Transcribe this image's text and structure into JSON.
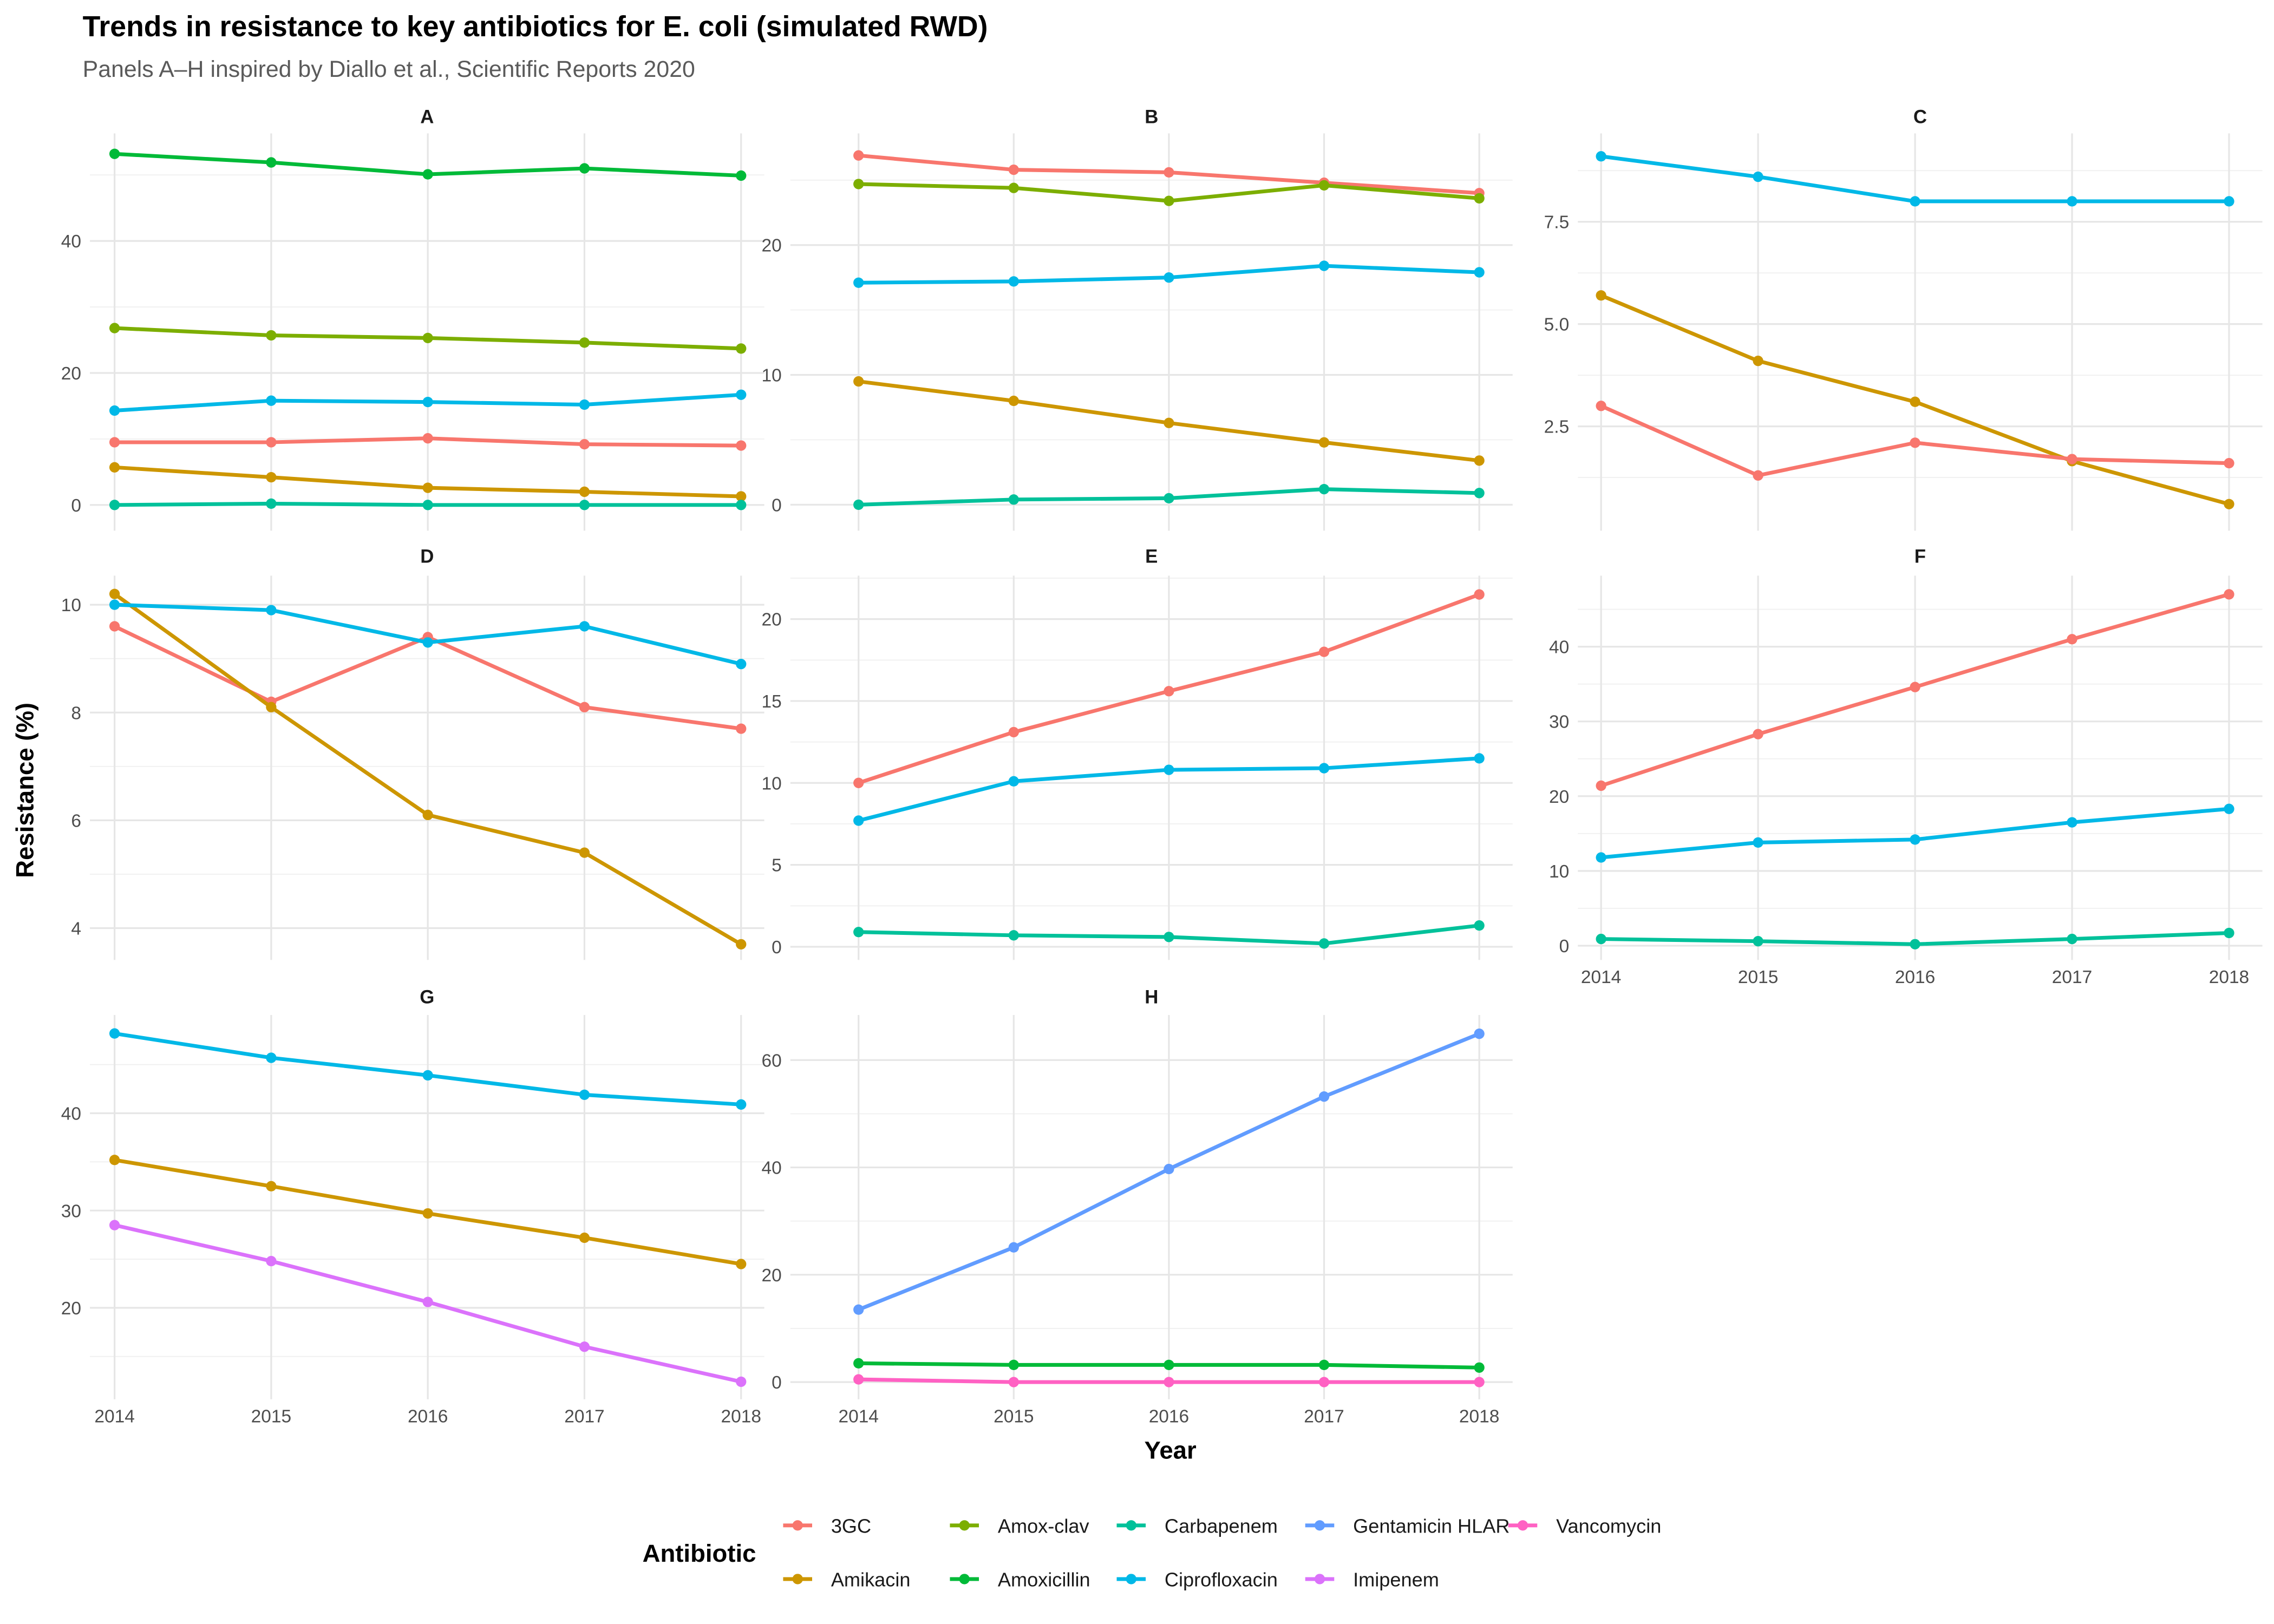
{
  "chart_data": {
    "type": "line",
    "title": "Trends in resistance to key antibiotics for E. coli (simulated RWD)",
    "subtitle": "Panels A–H inspired by Diallo et al., Scientific Reports 2020",
    "xlabel": "Year",
    "ylabel": "Resistance (%)",
    "x": [
      2014,
      2015,
      2016,
      2017,
      2018
    ],
    "grid": true,
    "legend": {
      "title": "Antibiotic",
      "placement": "bottom",
      "entries": [
        {
          "name": "3GC",
          "color": "#F8766D"
        },
        {
          "name": "Amikacin",
          "color": "#CD9600"
        },
        {
          "name": "Amox-clav",
          "color": "#7CAE00"
        },
        {
          "name": "Amoxicillin",
          "color": "#00BA38"
        },
        {
          "name": "Carbapenem",
          "color": "#00C19A"
        },
        {
          "name": "Ciprofloxacin",
          "color": "#00B8E7"
        },
        {
          "name": "Gentamicin HLAR",
          "color": "#619CFF"
        },
        {
          "name": "Imipenem",
          "color": "#DB72FB"
        },
        {
          "name": "Vancomycin",
          "color": "#FF61C3"
        }
      ]
    },
    "panels": [
      {
        "label": "A",
        "ylim": [
          -3.9,
          56.3
        ],
        "yticks": [
          0,
          20,
          40
        ],
        "show_x_ticks": false,
        "series": [
          {
            "name": "Amoxicillin",
            "values": [
              53.2,
              51.9,
              50.1,
              51.0,
              49.9
            ]
          },
          {
            "name": "Amox-clav",
            "values": [
              26.8,
              25.7,
              25.3,
              24.6,
              23.7
            ]
          },
          {
            "name": "Ciprofloxacin",
            "values": [
              14.3,
              15.8,
              15.6,
              15.2,
              16.7
            ]
          },
          {
            "name": "3GC",
            "values": [
              9.5,
              9.5,
              10.1,
              9.2,
              9.0
            ]
          },
          {
            "name": "Amikacin",
            "values": [
              5.7,
              4.2,
              2.6,
              2.0,
              1.3
            ]
          },
          {
            "name": "Carbapenem",
            "values": [
              0.0,
              0.2,
              0.0,
              0.0,
              0.0
            ]
          }
        ]
      },
      {
        "label": "B",
        "ylim": [
          -2.0,
          28.6
        ],
        "yticks": [
          0,
          10,
          20
        ],
        "show_x_ticks": false,
        "series": [
          {
            "name": "3GC",
            "values": [
              26.9,
              25.8,
              25.6,
              24.8,
              24.0
            ]
          },
          {
            "name": "Amox-clav",
            "values": [
              24.7,
              24.4,
              23.4,
              24.6,
              23.6
            ]
          },
          {
            "name": "Ciprofloxacin",
            "values": [
              17.1,
              17.2,
              17.5,
              18.4,
              17.9
            ]
          },
          {
            "name": "Amikacin",
            "values": [
              9.5,
              8.0,
              6.3,
              4.8,
              3.4
            ]
          },
          {
            "name": "Carbapenem",
            "values": [
              0.0,
              0.4,
              0.5,
              1.2,
              0.9
            ]
          }
        ]
      },
      {
        "label": "C",
        "ylim": [
          -0.05,
          9.66
        ],
        "yticks": [
          2.5,
          5.0,
          7.5
        ],
        "ytick_labels": [
          "2.5",
          "5.0",
          "7.5"
        ],
        "show_x_ticks": false,
        "series": [
          {
            "name": "Ciprofloxacin",
            "values": [
              9.1,
              8.6,
              8.0,
              8.0,
              8.0
            ]
          },
          {
            "name": "Amikacin",
            "values": [
              5.7,
              4.1,
              3.1,
              1.65,
              0.6
            ]
          },
          {
            "name": "3GC",
            "values": [
              3.0,
              1.3,
              2.1,
              1.7,
              1.6
            ]
          }
        ]
      },
      {
        "label": "D",
        "ylim": [
          3.41,
          10.54
        ],
        "yticks": [
          4,
          6,
          8,
          10
        ],
        "show_x_ticks": false,
        "series": [
          {
            "name": "3GC",
            "values": [
              9.6,
              8.2,
              9.4,
              8.1,
              7.7
            ]
          },
          {
            "name": "Amikacin",
            "values": [
              10.2,
              8.1,
              6.1,
              5.4,
              3.7
            ]
          },
          {
            "name": "Ciprofloxacin",
            "values": [
              10.0,
              9.9,
              9.3,
              9.6,
              8.9
            ]
          }
        ]
      },
      {
        "label": "E",
        "ylim": [
          -0.8,
          22.65
        ],
        "yticks": [
          0,
          5,
          10,
          15,
          20
        ],
        "show_x_ticks": false,
        "series": [
          {
            "name": "3GC",
            "values": [
              10.0,
              13.1,
              15.6,
              18.0,
              21.5
            ]
          },
          {
            "name": "Ciprofloxacin",
            "values": [
              7.7,
              10.1,
              10.8,
              10.9,
              11.5
            ]
          },
          {
            "name": "Carbapenem",
            "values": [
              0.9,
              0.7,
              0.6,
              0.2,
              1.3
            ]
          }
        ]
      },
      {
        "label": "F",
        "ylim": [
          -1.9,
          49.5
        ],
        "yticks": [
          0,
          10,
          20,
          30,
          40
        ],
        "show_x_ticks": true,
        "series": [
          {
            "name": "3GC",
            "values": [
              21.4,
              28.3,
              34.6,
              41.0,
              47.0
            ]
          },
          {
            "name": "Ciprofloxacin",
            "values": [
              11.8,
              13.8,
              14.2,
              16.5,
              18.3
            ]
          },
          {
            "name": "Carbapenem",
            "values": [
              0.9,
              0.6,
              0.2,
              0.9,
              1.7
            ]
          }
        ]
      },
      {
        "label": "G",
        "ylim": [
          10.6,
          50.1
        ],
        "yticks": [
          20,
          30,
          40
        ],
        "show_x_ticks": true,
        "series": [
          {
            "name": "Ciprofloxacin",
            "values": [
              48.2,
              45.7,
              43.9,
              41.9,
              40.9
            ]
          },
          {
            "name": "Amikacin",
            "values": [
              35.2,
              32.5,
              29.7,
              27.2,
              24.5
            ]
          },
          {
            "name": "Imipenem",
            "values": [
              28.5,
              24.8,
              20.6,
              16.0,
              12.4
            ]
          }
        ]
      },
      {
        "label": "H",
        "ylim": [
          -3.2,
          68.4
        ],
        "yticks": [
          0,
          20,
          40,
          60
        ],
        "show_x_ticks": true,
        "series": [
          {
            "name": "Gentamicin HLAR",
            "values": [
              13.5,
              25.1,
              39.7,
              53.2,
              64.9
            ]
          },
          {
            "name": "Amoxicillin",
            "values": [
              3.5,
              3.2,
              3.2,
              3.2,
              2.7
            ]
          },
          {
            "name": "Vancomycin",
            "values": [
              0.5,
              0.0,
              0.0,
              0.0,
              0.0
            ]
          }
        ]
      }
    ]
  }
}
